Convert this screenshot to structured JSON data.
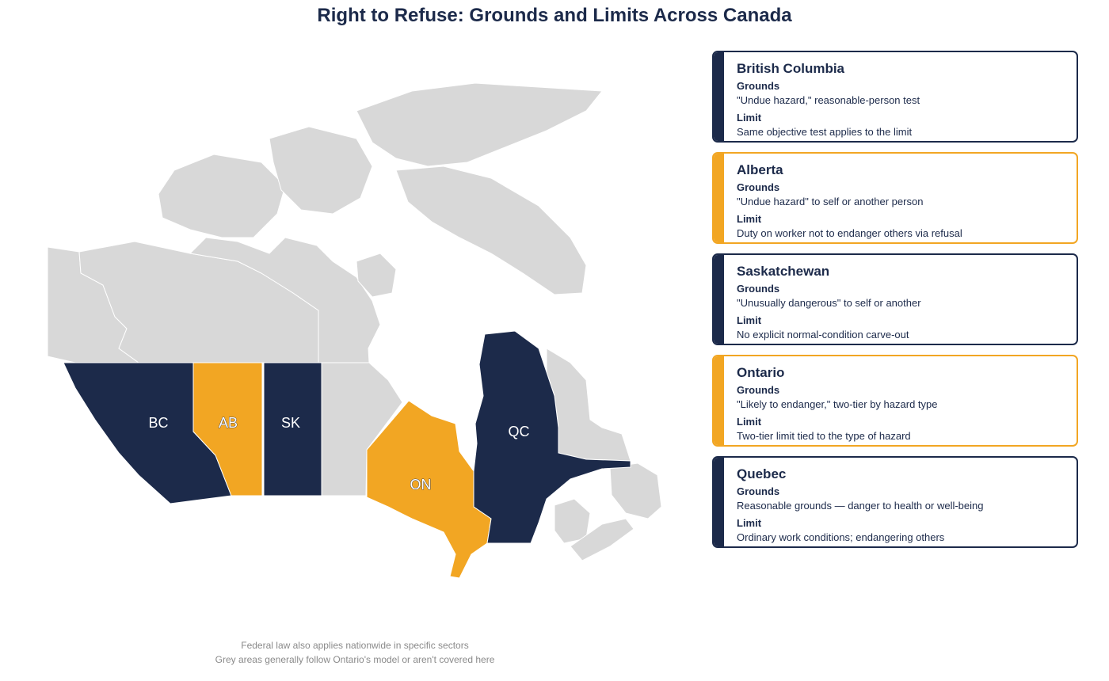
{
  "title": "Right to Refuse: Grounds and Limits Across Canada",
  "colors": {
    "navy": "#1c2a4a",
    "gold": "#f2a623",
    "grey": "#d8d8d8"
  },
  "map": {
    "labels": {
      "bc": "BC",
      "ab": "AB",
      "sk": "SK",
      "on": "ON",
      "qc": "QC"
    }
  },
  "cards": [
    {
      "name": "British Columbia",
      "color": "#1c2a4a",
      "grounds_heading": "Grounds",
      "grounds": "\"Undue hazard,\" reasonable-person test",
      "limit_heading": "Limit",
      "limit": "Same objective test applies to the limit"
    },
    {
      "name": "Alberta",
      "color": "#f2a623",
      "grounds_heading": "Grounds",
      "grounds": "\"Undue hazard\" to self or another person",
      "limit_heading": "Limit",
      "limit": "Duty on worker not to endanger others via refusal"
    },
    {
      "name": "Saskatchewan",
      "color": "#1c2a4a",
      "grounds_heading": "Grounds",
      "grounds": "\"Unusually dangerous\" to self or another",
      "limit_heading": "Limit",
      "limit": "No explicit normal-condition carve-out"
    },
    {
      "name": "Ontario",
      "color": "#f2a623",
      "grounds_heading": "Grounds",
      "grounds": "\"Likely to endanger,\" two-tier by hazard type",
      "limit_heading": "Limit",
      "limit": "Two-tier limit tied to the type of hazard"
    },
    {
      "name": "Quebec",
      "color": "#1c2a4a",
      "grounds_heading": "Grounds",
      "grounds": "Reasonable grounds — danger to health or well-being",
      "limit_heading": "Limit",
      "limit": "Ordinary work conditions; endangering others"
    }
  ],
  "footnotes": [
    "Federal law also applies nationwide in specific sectors",
    "Grey areas generally follow Ontario's model or aren't covered here"
  ]
}
